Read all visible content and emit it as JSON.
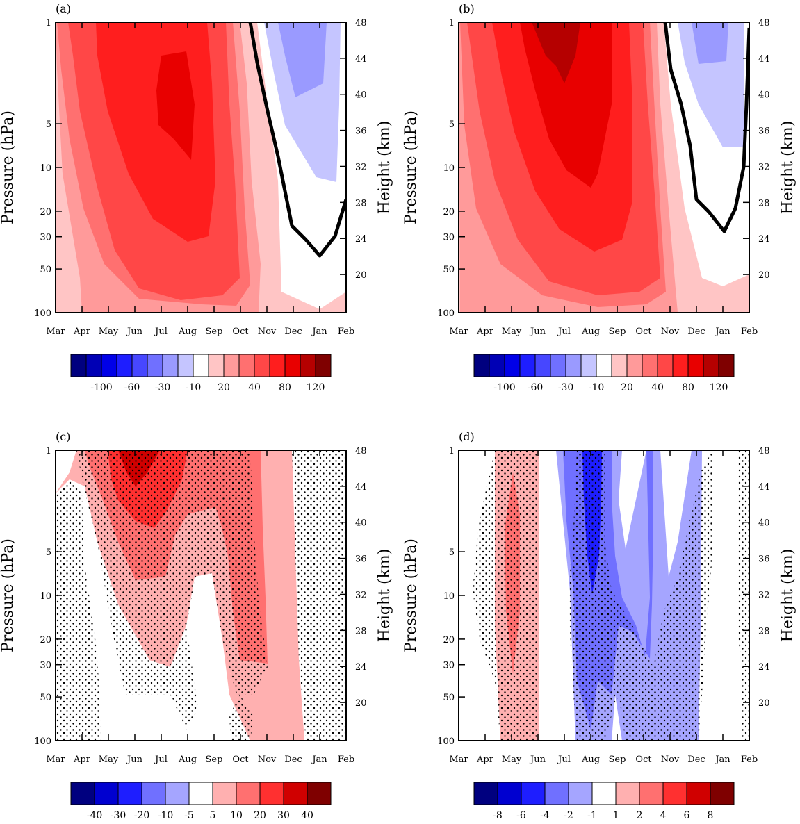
{
  "months": [
    "Mar",
    "Apr",
    "May",
    "Jun",
    "Jul",
    "Aug",
    "Sep",
    "Oct",
    "Nov",
    "Dec",
    "Jan",
    "Feb"
  ],
  "pressure_ticks": [
    1,
    5,
    10,
    20,
    30,
    50,
    100
  ],
  "height_ticks": [
    48,
    44,
    40,
    36,
    32,
    28,
    24,
    20
  ],
  "left_axis_label": "Pressure (hPa)",
  "right_axis_label": "Height (km)",
  "colors": {
    "diverging_16": [
      "#00007f",
      "#0000b5",
      "#0000e8",
      "#1e1eff",
      "#4747ff",
      "#7070ff",
      "#9a9aff",
      "#c5c5ff",
      "#ffffff",
      "#ffc5c5",
      "#ff9a9a",
      "#ff7070",
      "#ff4747",
      "#ff1e1e",
      "#e80000",
      "#b50000",
      "#7f0000"
    ],
    "zero_line": "#000000",
    "stipple": "#000000"
  },
  "chart_data": [
    {
      "panel": "(a)",
      "type": "heatmap",
      "x": [
        "Mar",
        "Apr",
        "May",
        "Jun",
        "Jul",
        "Aug",
        "Sep",
        "Oct",
        "Nov",
        "Dec",
        "Jan",
        "Feb"
      ],
      "y_pressure_hPa": [
        1,
        5,
        10,
        20,
        30,
        50,
        100
      ],
      "zero_contour": true,
      "colorbar": {
        "labels": [
          "-100",
          "-60",
          "-30",
          "-10",
          "20",
          "40",
          "80",
          "120"
        ],
        "colors": [
          "#00007f",
          "#0000b5",
          "#0000e8",
          "#1e1eff",
          "#4747ff",
          "#7070ff",
          "#9a9aff",
          "#c5c5ff",
          "#ffffff",
          "#ffc5c5",
          "#ff9a9a",
          "#ff7070",
          "#ff4747",
          "#ff1e1e",
          "#e80000",
          "#b50000",
          "#7f0000"
        ]
      }
    },
    {
      "panel": "(b)",
      "type": "heatmap",
      "x": [
        "Mar",
        "Apr",
        "May",
        "Jun",
        "Jul",
        "Aug",
        "Sep",
        "Oct",
        "Nov",
        "Dec",
        "Jan",
        "Feb"
      ],
      "y_pressure_hPa": [
        1,
        5,
        10,
        20,
        30,
        50,
        100
      ],
      "zero_contour": true,
      "colorbar": {
        "labels": [
          "-100",
          "-60",
          "-30",
          "-10",
          "20",
          "40",
          "80",
          "120"
        ],
        "colors": [
          "#00007f",
          "#0000b5",
          "#0000e8",
          "#1e1eff",
          "#4747ff",
          "#7070ff",
          "#9a9aff",
          "#c5c5ff",
          "#ffffff",
          "#ffc5c5",
          "#ff9a9a",
          "#ff7070",
          "#ff4747",
          "#ff1e1e",
          "#e80000",
          "#b50000",
          "#7f0000"
        ]
      }
    },
    {
      "panel": "(c)",
      "type": "heatmap",
      "x": [
        "Mar",
        "Apr",
        "May",
        "Jun",
        "Jul",
        "Aug",
        "Sep",
        "Oct",
        "Nov",
        "Dec",
        "Jan",
        "Feb"
      ],
      "y_pressure_hPa": [
        1,
        5,
        10,
        20,
        30,
        50,
        100
      ],
      "stippling": true,
      "colorbar": {
        "labels": [
          "-40",
          "-30",
          "-20",
          "-10",
          "-5",
          "5",
          "10",
          "20",
          "30",
          "40"
        ],
        "colors": [
          "#00007f",
          "#0000d0",
          "#1e1eff",
          "#7070ff",
          "#a5a5ff",
          "#ffffff",
          "#ffb0b0",
          "#ff7070",
          "#ff3030",
          "#d00000",
          "#7f0000"
        ]
      }
    },
    {
      "panel": "(d)",
      "type": "heatmap",
      "x": [
        "Mar",
        "Apr",
        "May",
        "Jun",
        "Jul",
        "Aug",
        "Sep",
        "Oct",
        "Nov",
        "Dec",
        "Jan",
        "Feb"
      ],
      "y_pressure_hPa": [
        1,
        5,
        10,
        20,
        30,
        50,
        100
      ],
      "stippling": true,
      "colorbar": {
        "labels": [
          "-8",
          "-6",
          "-4",
          "-2",
          "-1",
          "1",
          "2",
          "4",
          "6",
          "8"
        ],
        "colors": [
          "#00007f",
          "#0000d0",
          "#1e1eff",
          "#7070ff",
          "#a5a5ff",
          "#ffffff",
          "#ffb0b0",
          "#ff7070",
          "#ff3030",
          "#d00000",
          "#7f0000"
        ]
      }
    }
  ]
}
